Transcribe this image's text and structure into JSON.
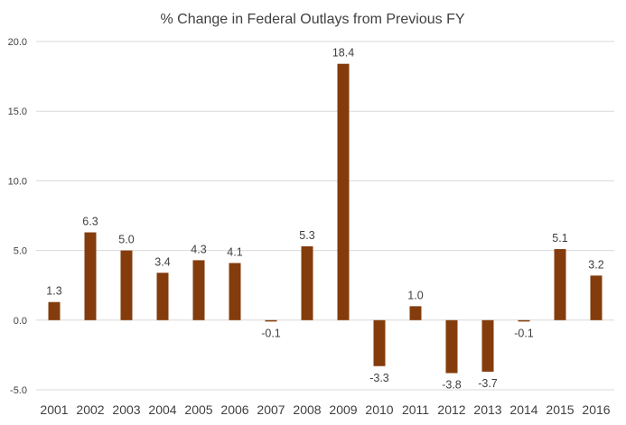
{
  "chart_data": {
    "type": "bar",
    "title": "% Change in Federal Outlays from Previous FY",
    "xlabel": "",
    "ylabel": "",
    "categories": [
      "2001",
      "2002",
      "2003",
      "2004",
      "2005",
      "2006",
      "2007",
      "2008",
      "2009",
      "2010",
      "2011",
      "2012",
      "2013",
      "2014",
      "2015",
      "2016"
    ],
    "values": [
      1.3,
      6.3,
      5.0,
      3.4,
      4.3,
      4.1,
      -0.1,
      5.3,
      18.4,
      -3.3,
      1.0,
      -3.8,
      -3.7,
      -0.1,
      5.1,
      3.2
    ],
    "data_labels": [
      "1.3",
      "6.3",
      "5.0",
      "3.4",
      "4.3",
      "4.1",
      "-0.1",
      "5.3",
      "18.4",
      "-3.3",
      "1.0",
      "-3.8",
      "-3.7",
      "-0.1",
      "5.1",
      "3.2"
    ],
    "y_ticks": [
      "20.0",
      "15.0",
      "10.0",
      "5.0",
      "0.0",
      "-5.0"
    ],
    "ylim": [
      -5,
      20
    ],
    "grid": true,
    "bar_color": "#843c0c"
  }
}
